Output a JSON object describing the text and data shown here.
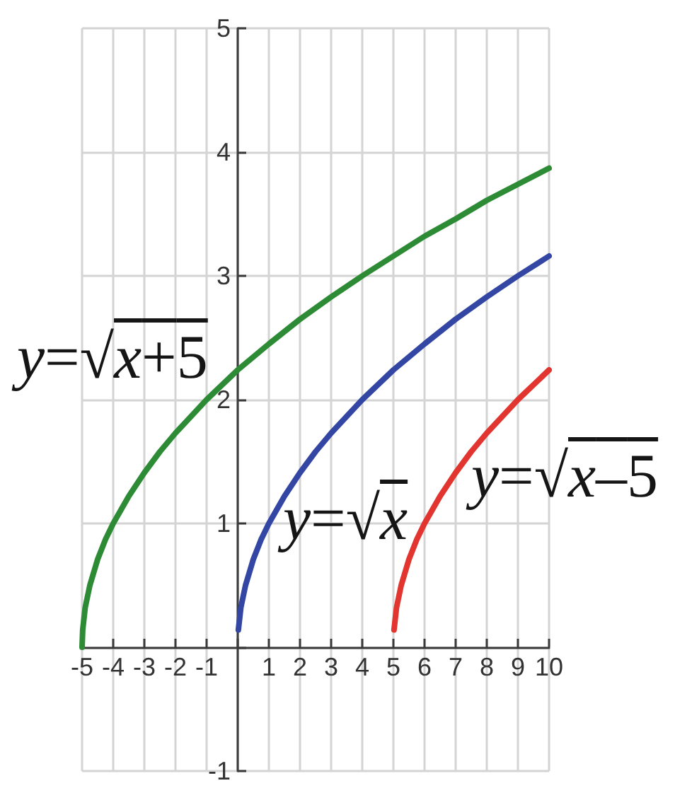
{
  "chart_data": {
    "type": "line",
    "series": [
      {
        "name": "y=√x+5",
        "color": "#2e8b35",
        "x": [
          -5,
          -4.98,
          -4.9,
          -4.75,
          -4.5,
          -4.25,
          -4,
          -3.5,
          -3,
          -2.5,
          -2,
          -1,
          0,
          1,
          2,
          3,
          4,
          5,
          6,
          7,
          8,
          9,
          10
        ],
        "values": [
          0,
          0.14,
          0.32,
          0.5,
          0.71,
          0.87,
          1,
          1.22,
          1.41,
          1.58,
          1.73,
          2,
          2.24,
          2.45,
          2.65,
          2.83,
          3,
          3.16,
          3.32,
          3.46,
          3.61,
          3.74,
          3.87
        ]
      },
      {
        "name": "y=√x",
        "color": "#3446a3",
        "x": [
          0.02,
          0.1,
          0.25,
          0.5,
          0.75,
          1,
          1.5,
          2,
          2.5,
          3,
          4,
          5,
          6,
          7,
          8,
          9,
          10
        ],
        "values": [
          0.14,
          0.32,
          0.5,
          0.71,
          0.87,
          1,
          1.22,
          1.41,
          1.58,
          1.73,
          2,
          2.24,
          2.45,
          2.65,
          2.83,
          3,
          3.16
        ]
      },
      {
        "name": "y=√x–5",
        "color": "#e2352f",
        "x": [
          5.02,
          5.1,
          5.25,
          5.5,
          5.75,
          6,
          6.5,
          7,
          7.5,
          8,
          9,
          10
        ],
        "values": [
          0.14,
          0.32,
          0.5,
          0.71,
          0.87,
          1,
          1.22,
          1.41,
          1.58,
          1.73,
          2,
          2.24
        ]
      }
    ],
    "xlim": [
      -5,
      10
    ],
    "ylim": [
      -1,
      5
    ],
    "xticks": [
      -5,
      -4,
      -3,
      -2,
      -1,
      {
        "value": 0,
        "label": null
      },
      1,
      2,
      3,
      4,
      5,
      6,
      7,
      8,
      9,
      10
    ],
    "yticks": [
      -1,
      {
        "value": 0,
        "label": null
      },
      1,
      2,
      3,
      4,
      5
    ],
    "grid": true,
    "marker": "none",
    "line_style": "solid"
  }
}
